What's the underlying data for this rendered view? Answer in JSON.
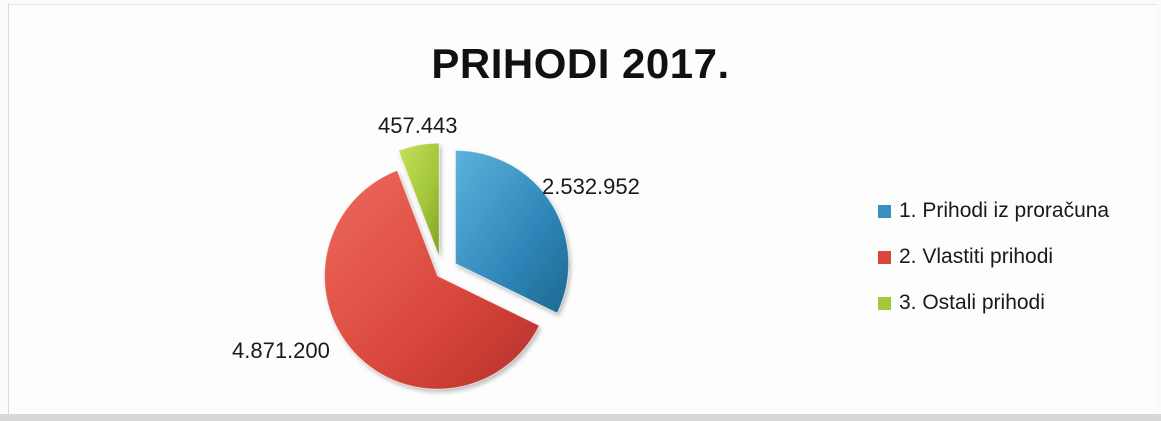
{
  "chart_data": {
    "type": "pie",
    "title": "PRIHODI 2017.",
    "categories": [
      "1. Prihodi iz proračuna",
      "2. Vlastiti prihodi",
      "3. Ostali prihodi"
    ],
    "values": [
      2532952,
      4871200,
      457443
    ],
    "data_labels": [
      "2.532.952",
      "4.871.200",
      "457.443"
    ],
    "colors": [
      "#3a8fbf",
      "#d9463b",
      "#a5c83a"
    ],
    "legend_position": "right",
    "exploded": true
  }
}
